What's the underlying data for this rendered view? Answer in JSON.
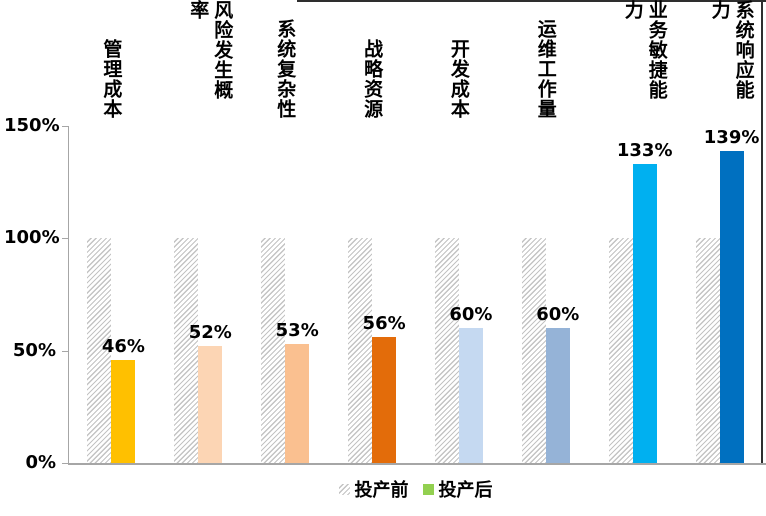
{
  "chart_data": {
    "type": "bar",
    "categories": [
      "管理成本",
      "风险发生概率",
      "系统复杂性",
      "战略资源",
      "开发成本",
      "运维工作量",
      "业务敏捷能力",
      "系统响应能力"
    ],
    "series": [
      {
        "name": "投产前",
        "values": [
          100,
          100,
          100,
          100,
          100,
          100,
          100,
          100
        ],
        "fill": "hatch"
      },
      {
        "name": "投产后",
        "values": [
          46,
          52,
          53,
          56,
          60,
          60,
          133,
          139
        ],
        "data_labels": [
          "46%",
          "52%",
          "53%",
          "56%",
          "60%",
          "60%",
          "133%",
          "139%"
        ],
        "colors": [
          "#FFC000",
          "#FCD5B4",
          "#FAC090",
          "#E36C0A",
          "#C5D9F1",
          "#95B3D7",
          "#00B0F0",
          "#0070C0"
        ]
      }
    ],
    "yticks": [
      {
        "label": "0%",
        "value": 0
      },
      {
        "label": "50%",
        "value": 50
      },
      {
        "label": "100%",
        "value": 100
      },
      {
        "label": "150%",
        "value": 150
      }
    ],
    "ylim": [
      0,
      150
    ],
    "grid": false,
    "legend_position": "bottom",
    "legend": [
      {
        "label": "投产前",
        "swatch": "hatch"
      },
      {
        "label": "投产后",
        "swatch": "#92D050"
      }
    ]
  },
  "colors": {
    "axis": "#A6A6A6",
    "hatch_line": "#C3C3C3",
    "text": "#000000"
  }
}
